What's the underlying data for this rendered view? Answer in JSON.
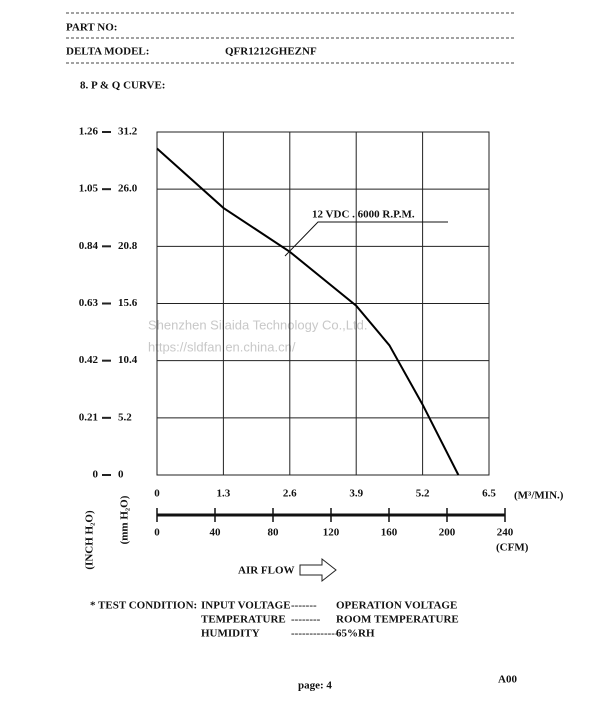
{
  "header": {
    "part_no": "PART NO:",
    "model_label": "DELTA MODEL:",
    "model": "QFR1212GHEZNF",
    "section": "8. P & Q CURVE:"
  },
  "watermark": [
    "Shenzhen Silaida Technology Co.,Ltd.",
    "https://sldfan.en.china.cn/"
  ],
  "chart_data": {
    "type": "line",
    "x_label": "(M³/MIN.)",
    "x2_label": "(CFM)",
    "y_label": "(mm H₂O)",
    "y2_label": "(INCH H₂O)",
    "flow_label": "AIR FLOW",
    "x": [
      0,
      1.3,
      2.6,
      3.9,
      4.55,
      5.2,
      5.9
    ],
    "series": [
      {
        "name": "12 VDC . 6000 R.P.M.",
        "color": "#000000",
        "values": [
          29.7,
          24.3,
          20.3,
          15.4,
          11.8,
          6.4,
          0
        ]
      }
    ],
    "xlim": [
      0,
      6.5
    ],
    "xticks": [
      0,
      1.3,
      2.6,
      3.9,
      5.2,
      6.5
    ],
    "x2lim": [
      0,
      240
    ],
    "x2ticks": [
      0,
      40,
      80,
      120,
      160,
      200,
      240
    ],
    "ylim": [
      0,
      31.2
    ],
    "yticks": [
      0,
      5.2,
      10.4,
      15.6,
      20.8,
      {
        "value": 26,
        "label": "26.0"
      },
      31.2
    ],
    "y2lim": [
      0,
      1.26
    ],
    "y2ticks": [
      0,
      0.21,
      0.42,
      0.63,
      0.84,
      1.05,
      1.26
    ],
    "grid": true
  },
  "test_condition": {
    "label": "* TEST CONDITION:",
    "rows": [
      [
        "INPUT VOLTAGE",
        "-------",
        "OPERATION VOLTAGE"
      ],
      [
        "TEMPERATURE",
        "--------",
        "ROOM TEMPERATURE"
      ],
      [
        "HUMIDITY",
        "-------------",
        "65%RH"
      ]
    ]
  },
  "footer": {
    "page": "page: 4",
    "rev": "A00"
  }
}
